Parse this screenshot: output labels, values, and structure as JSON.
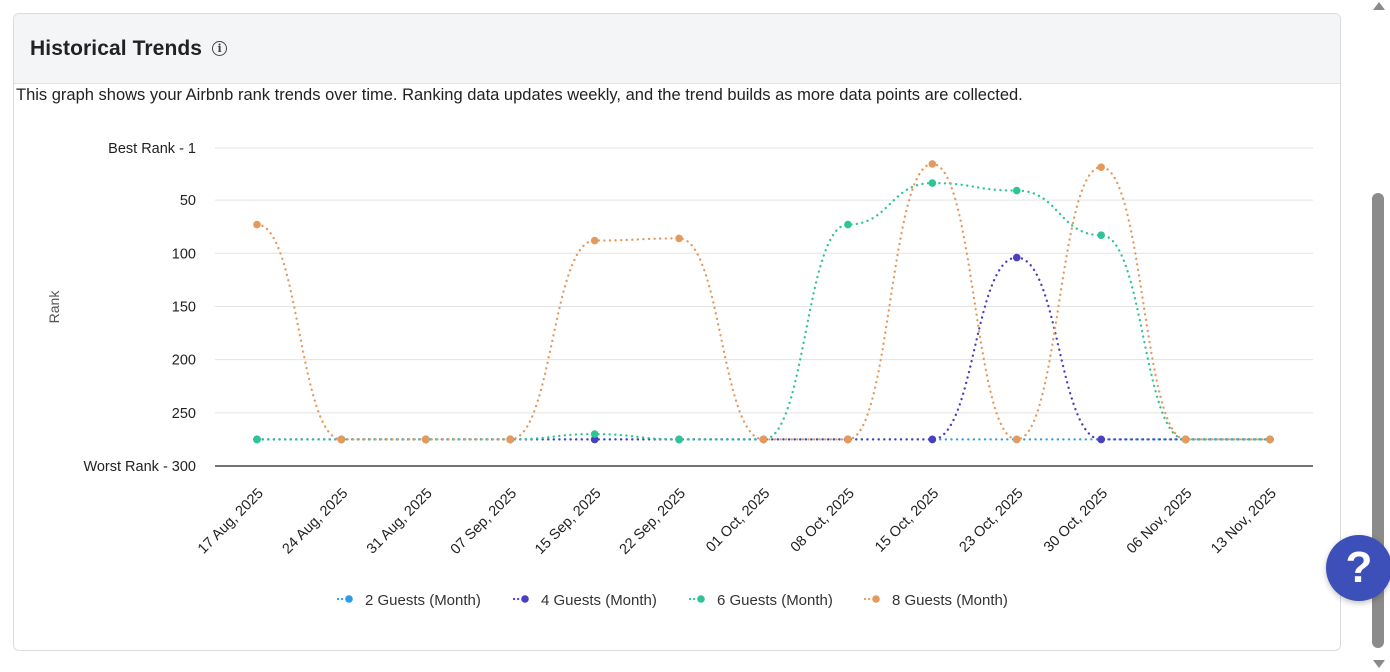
{
  "header": {
    "title": "Historical Trends"
  },
  "description": "This graph shows your Airbnb rank trends over time. Ranking data updates weekly, and the trend builds as more data points are collected.",
  "help_button": {
    "label": "?"
  },
  "chart_data": {
    "type": "line",
    "categories": [
      "17 Aug, 2025",
      "24 Aug, 2025",
      "31 Aug, 2025",
      "07 Sep, 2025",
      "15 Sep, 2025",
      "22 Sep, 2025",
      "01 Oct, 2025",
      "08 Oct, 2025",
      "15 Oct, 2025",
      "23 Oct, 2025",
      "30 Oct, 2025",
      "06 Nov, 2025",
      "13 Nov, 2025"
    ],
    "ylabel": "Rank",
    "y_reversed": true,
    "ylim": [
      1,
      300
    ],
    "yticks": [
      {
        "value": 1,
        "label": "Best Rank - 1"
      },
      {
        "value": 50,
        "label": "50"
      },
      {
        "value": 100,
        "label": "100"
      },
      {
        "value": 150,
        "label": "150"
      },
      {
        "value": 200,
        "label": "200"
      },
      {
        "value": 250,
        "label": "250"
      },
      {
        "value": 300,
        "label": "Worst Rank - 300"
      }
    ],
    "grid": true,
    "legend_position": "bottom",
    "line_style": "dotted",
    "series": [
      {
        "name": "2 Guests (Month)",
        "color": "#2e9be6",
        "values": [
          275,
          275,
          275,
          275,
          275,
          275,
          275,
          275,
          275,
          275,
          275,
          275,
          275
        ]
      },
      {
        "name": "4 Guests (Month)",
        "color": "#4a3fc0",
        "values": [
          275,
          275,
          275,
          275,
          275,
          275,
          275,
          275,
          275,
          104,
          275,
          275,
          275
        ]
      },
      {
        "name": "6 Guests (Month)",
        "color": "#2ec497",
        "values": [
          275,
          275,
          275,
          275,
          270,
          275,
          275,
          73,
          34,
          41,
          83,
          275,
          275
        ]
      },
      {
        "name": "8 Guests (Month)",
        "color": "#e59a5c",
        "values": [
          73,
          275,
          275,
          275,
          88,
          86,
          275,
          275,
          16,
          275,
          19,
          275,
          275
        ]
      }
    ]
  }
}
